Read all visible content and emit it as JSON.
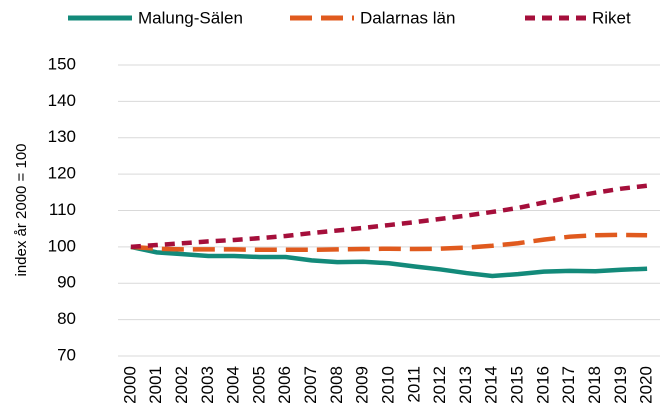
{
  "chart_data": {
    "type": "line",
    "y_label": "index år 2000 = 100",
    "categories": [
      "2000",
      "2001",
      "2002",
      "2003",
      "2004",
      "2005",
      "2006",
      "2007",
      "2008",
      "2009",
      "2010",
      "2011",
      "2012",
      "2013",
      "2014",
      "2015",
      "2016",
      "2017",
      "2018",
      "2019",
      "2020"
    ],
    "series": [
      {
        "name": "Malung-Sälen",
        "color": "#138a7a",
        "dash": "solid",
        "values": [
          100,
          98.5,
          98,
          97.5,
          97.5,
          97.2,
          97.2,
          96.3,
          95.8,
          95.9,
          95.5,
          94.6,
          93.8,
          92.8,
          92,
          92.5,
          93.2,
          93.4,
          93.3,
          93.7,
          94
        ]
      },
      {
        "name": "Dalarnas län",
        "color": "#e05a1e",
        "dash": "long",
        "values": [
          100,
          99.5,
          99.3,
          99.3,
          99.3,
          99.2,
          99.2,
          99.2,
          99.3,
          99.4,
          99.5,
          99.4,
          99.5,
          99.8,
          100.3,
          101,
          102,
          102.8,
          103.2,
          103.3,
          103.2
        ]
      },
      {
        "name": "Riket",
        "color": "#a50f3b",
        "dash": "short",
        "values": [
          100,
          100.5,
          101,
          101.5,
          101.9,
          102.4,
          103,
          103.8,
          104.5,
          105.2,
          106,
          106.8,
          107.7,
          108.6,
          109.6,
          110.7,
          112.2,
          113.6,
          114.9,
          116,
          116.8
        ]
      }
    ],
    "ylim": [
      70,
      150
    ],
    "yticks": [
      70,
      80,
      90,
      100,
      110,
      120,
      130,
      140,
      150
    ],
    "grid": true,
    "legend": "top"
  }
}
